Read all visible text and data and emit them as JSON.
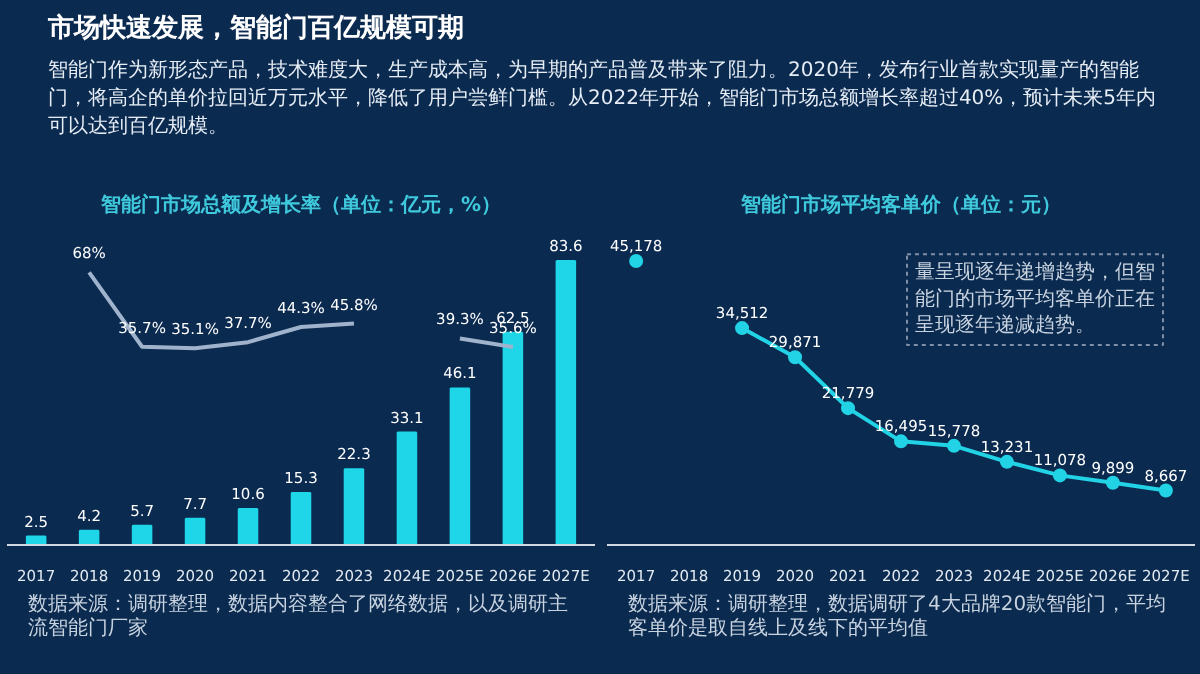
{
  "chart_data": [
    {
      "type": "bar",
      "title": "智能门市场总额及增长率（单位：亿元，%）",
      "categories": [
        "2017",
        "2018",
        "2019",
        "2020",
        "2021",
        "2022",
        "2023",
        "2024E",
        "2025E",
        "2026E",
        "2027E"
      ],
      "tick_labels": "x",
      "grid": false,
      "data_labels": true,
      "series": [
        {
          "type": "bar",
          "color": "#1ed6e8",
          "values": [
            2.5,
            4.2,
            5.7,
            7.7,
            10.6,
            15.3,
            22.3,
            33.1,
            46.1,
            62.5,
            83.6
          ]
        },
        {
          "type": "line",
          "axis": "y2",
          "color": "#9fb3cc",
          "values": [
            null,
            68,
            35.7,
            35.1,
            37.7,
            44.3,
            45.8,
            null,
            39.3,
            35.6,
            null
          ],
          "value_labels": [
            null,
            "68%",
            "35.7%",
            "35.1%",
            "37.7%",
            "44.3%",
            "45.8%",
            null,
            "39.3%",
            "35.6%",
            null
          ]
        }
      ],
      "annotations": [
        "市场快速发展，智能门百亿规模可期",
        "智能门作为新形态产品，技术难度大，生产成本高，为早期的产品普及带来了阻力。2020年，发布行业首款实现量产的智能门，将高企的单价拉回近万元水平，降低了用户尝鲜门槛。从2022年开始，智能门市场总额增长率超过40%，预计未来5年内可以达到百亿规模。",
        "数据来源：调研整理，数据内容整合了网络数据，以及调研主流智能门厂家"
      ]
    },
    {
      "type": "line",
      "title": "智能门市场平均客单价（单位：元）",
      "categories": [
        "2017",
        "2018",
        "2019",
        "2020",
        "2021",
        "2022",
        "2023",
        "2024E",
        "2025E",
        "2026E",
        "2027E"
      ],
      "tick_labels": "x",
      "grid": false,
      "marker": "circle",
      "data_labels": true,
      "series": [
        {
          "color": "#22d3e6",
          "values": [
            45178,
            null,
            34512,
            29871,
            21779,
            16495,
            15778,
            13231,
            11078,
            9899,
            8667
          ],
          "value_labels": [
            "45,178",
            null,
            "34,512",
            "29,871",
            "21,779",
            "16,495",
            "15,778",
            "13,231",
            "11,078",
            "9,899",
            "8,667"
          ]
        }
      ],
      "annotations": [
        "量呈现逐年递增趋势，但智能门的市场平均客单价正在呈现逐年递减趋势。",
        "数据来源：调研整理，数据调研了4大品牌20款智能门，平均客单价是取自线上及线下的平均值"
      ]
    }
  ]
}
